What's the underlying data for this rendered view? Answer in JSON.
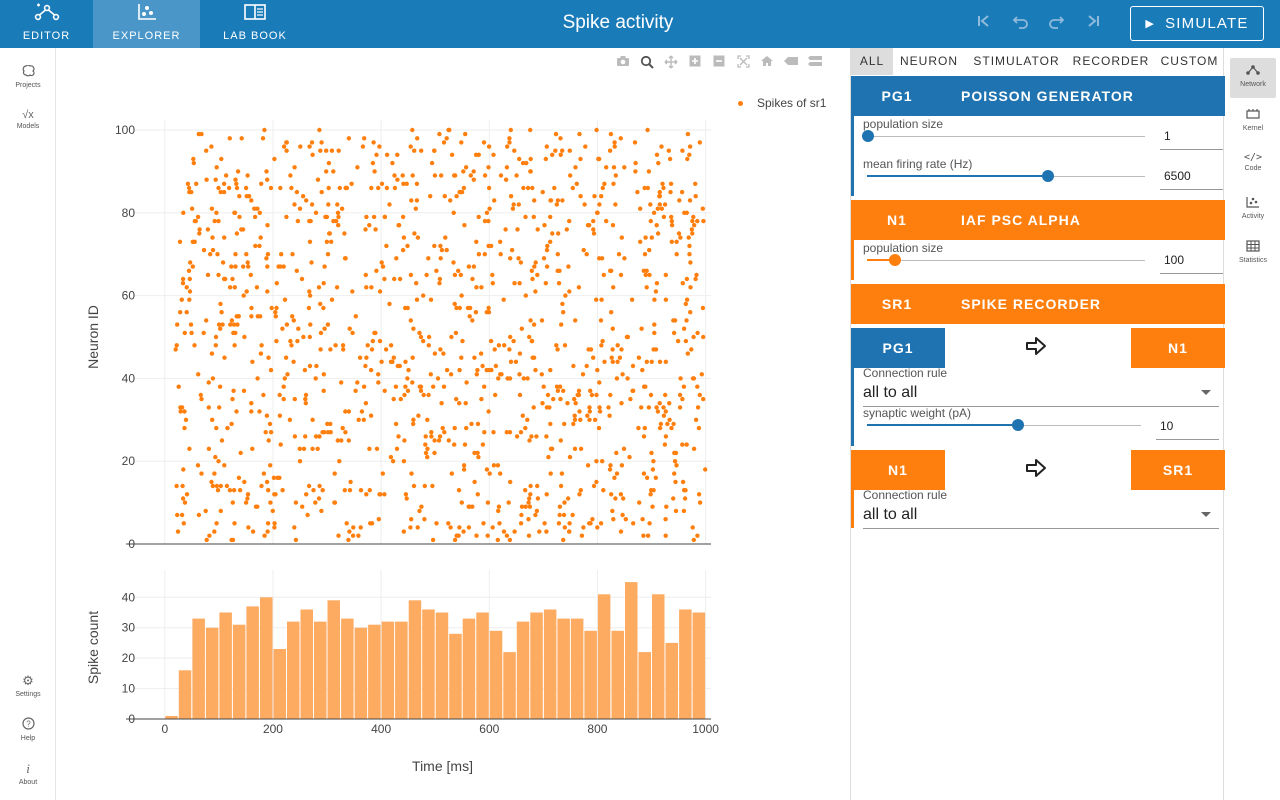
{
  "app": {
    "title": "Spike activity"
  },
  "topnav": [
    {
      "label": "EDITOR",
      "icon": "network-edit-icon"
    },
    {
      "label": "EXPLORER",
      "icon": "scatter-icon"
    },
    {
      "label": "LAB BOOK",
      "icon": "book-icon"
    }
  ],
  "history": {
    "icons": [
      "skip-back-icon",
      "undo-icon",
      "redo-icon",
      "skip-forward-icon"
    ]
  },
  "simulate": {
    "label": "SIMULATE"
  },
  "leftnav": {
    "projects": "Projects",
    "models": "Models",
    "settings": "Settings",
    "help": "Help",
    "about": "About"
  },
  "modebar": [
    "camera-icon",
    "zoom-icon",
    "pan-icon",
    "zoom-in-icon",
    "zoom-out-icon",
    "autoscale-icon",
    "home-icon",
    "hover-closest-icon",
    "hover-compare-icon"
  ],
  "legend": {
    "label": "Spikes of sr1",
    "color": "#ff7f0e"
  },
  "chart_data": [
    {
      "type": "scatter",
      "name": "Spikes of sr1",
      "ylabel": "Neuron ID",
      "yticks": [
        0,
        20,
        40,
        60,
        80,
        100
      ],
      "ylim": [
        0,
        100
      ],
      "xlim": [
        0,
        1000
      ],
      "color": "#ff7f0e",
      "n_points": 1280,
      "y_range": [
        1,
        100
      ],
      "x_range": [
        20,
        1000
      ],
      "grid": true
    },
    {
      "type": "bar",
      "ylabel": "Spike count",
      "xlabel": "Time [ms]",
      "xticks": [
        0,
        200,
        400,
        600,
        800,
        1000
      ],
      "yticks": [
        0,
        10,
        20,
        30,
        40
      ],
      "ylim": [
        0,
        47
      ],
      "xlim": [
        -20,
        1010
      ],
      "bin_width": 25,
      "bin_starts": [
        0,
        25,
        50,
        75,
        100,
        125,
        150,
        175,
        200,
        225,
        250,
        275,
        300,
        325,
        350,
        375,
        400,
        425,
        450,
        475,
        500,
        525,
        550,
        575,
        600,
        625,
        650,
        675,
        700,
        725,
        750,
        775,
        800,
        825,
        850,
        875,
        900,
        925,
        950,
        975
      ],
      "values": [
        1,
        16,
        33,
        30,
        35,
        31,
        37,
        40,
        23,
        32,
        36,
        32,
        39,
        33,
        30,
        31,
        32,
        32,
        39,
        36,
        35,
        28,
        33,
        35,
        29,
        22,
        32,
        35,
        36,
        33,
        33,
        29,
        41,
        29,
        45,
        22,
        41,
        25,
        36,
        35
      ],
      "color": "#fdab61"
    }
  ],
  "panel": {
    "tabs": [
      "ALL",
      "NEURON",
      "STIMULATOR",
      "RECORDER",
      "CUSTOM"
    ],
    "nodes": {
      "pg1": {
        "label": "PG1",
        "model": "POISSON GENERATOR",
        "color": "#1f73b0",
        "params": [
          {
            "label": "population size",
            "value": "1",
            "fraction": 0.0
          },
          {
            "label": "mean firing rate (Hz)",
            "value": "6500",
            "fraction": 0.65
          }
        ]
      },
      "n1": {
        "label": "N1",
        "model": "IAF PSC ALPHA",
        "color": "#ff7f0e",
        "params": [
          {
            "label": "population size",
            "value": "100",
            "fraction": 0.1
          }
        ]
      },
      "sr1": {
        "label": "SR1",
        "model": "SPIKE RECORDER",
        "color": "#ff7f0e"
      }
    },
    "connections": [
      {
        "source": "PG1",
        "target": "N1",
        "rule_label": "Connection rule",
        "rule": "all to all",
        "weight_label": "synaptic weight (pA)",
        "weight": "10",
        "weight_fraction": 0.55
      },
      {
        "source": "N1",
        "target": "SR1",
        "rule_label": "Connection rule",
        "rule": "all to all"
      }
    ]
  },
  "rightnav": {
    "network": "Network",
    "kernel": "Kernel",
    "code": "Code",
    "activity": "Activity",
    "statistics": "Statistics"
  }
}
